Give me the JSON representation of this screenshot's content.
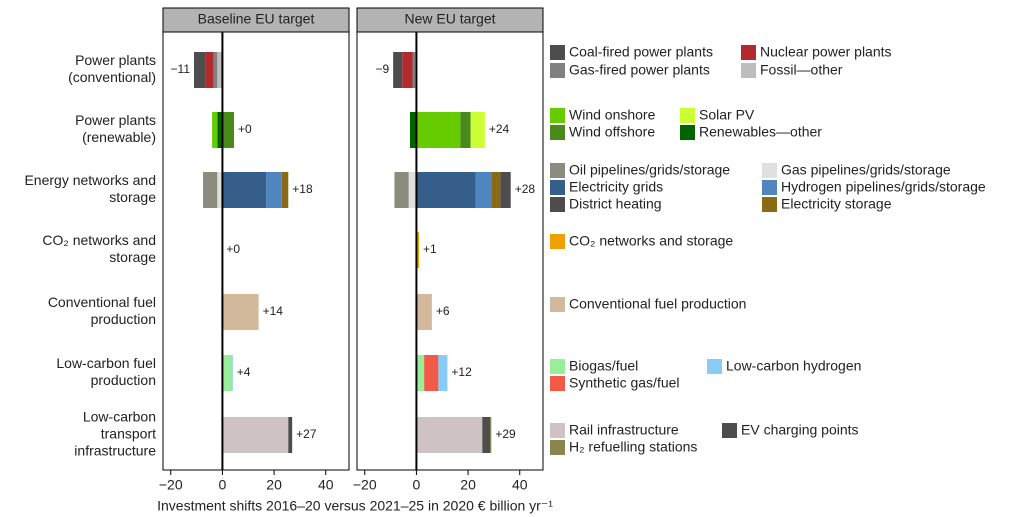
{
  "chart_data": {
    "type": "bar",
    "orientation": "horizontal",
    "xlabel": "Investment shifts 2016–20 versus 2021–25 in 2020 € billion yr⁻¹",
    "xlim": [
      -23,
      49
    ],
    "xticks": [
      {
        "value": -20,
        "label": "−20"
      },
      0,
      20,
      40
    ],
    "panels": [
      "Baseline EU target",
      "New EU target"
    ],
    "groups": [
      {
        "label": [
          "Power plants",
          "(conventional)"
        ],
        "value_labels": [
          "−11",
          "−9"
        ],
        "series": [
          {
            "name": "Coal-fired power plants",
            "color": "#4d4d4d",
            "values": [
              -4.5,
              -3.5
            ]
          },
          {
            "name": "Nuclear power plants",
            "color": "#b22a2e",
            "values": [
              -3,
              -4
            ]
          },
          {
            "name": "Gas-fired power plants",
            "color": "#808080",
            "values": [
              -1.5,
              -1
            ]
          },
          {
            "name": "Fossil—other",
            "color": "#bdbdbd",
            "values": [
              -2,
              -0.5
            ]
          }
        ]
      },
      {
        "label": [
          "Power plants",
          "(renewable)"
        ],
        "value_labels": [
          "+0",
          "+24"
        ],
        "series": [
          {
            "name": "Wind onshore",
            "color": "#66cc00",
            "values": [
              -2,
              17
            ]
          },
          {
            "name": "Wind offshore",
            "color": "#4a8a1a",
            "values": [
              4.5,
              4
            ]
          },
          {
            "name": "Solar PV",
            "color": "#ccff33",
            "values": [
              0,
              5.5
            ]
          },
          {
            "name": "Renewables—other",
            "color": "#006400",
            "values": [
              -2,
              -2.5
            ]
          }
        ]
      },
      {
        "label": [
          "Energy networks and",
          "storage"
        ],
        "value_labels": [
          "+18",
          "+28"
        ],
        "series": [
          {
            "name": "Oil pipelines/grids/storage",
            "color": "#8c8c7e",
            "values": [
              -5.5,
              -5.5
            ]
          },
          {
            "name": "Gas pipelines/grids/storage",
            "color": "#e0e0e0",
            "values": [
              -2,
              -3
            ]
          },
          {
            "name": "Electricity grids",
            "color": "#355f8a",
            "values": [
              17,
              23
            ]
          },
          {
            "name": "Hydrogen pipelines/grids/storage",
            "color": "#4f86c0",
            "values": [
              6,
              6
            ]
          },
          {
            "name": "Electricity storage",
            "color": "#8a6a14",
            "values": [
              2.5,
              3.5
            ]
          },
          {
            "name": "District heating",
            "color": "#4d4d4d",
            "values": [
              0,
              4
            ]
          }
        ]
      },
      {
        "label": [
          "CO₂ networks and",
          "storage"
        ],
        "value_labels": [
          "+0",
          "+1"
        ],
        "series": [
          {
            "name": "CO₂ networks and storage",
            "color": "#f0a000",
            "values": [
              0,
              1
            ]
          }
        ]
      },
      {
        "label": [
          "Conventional fuel",
          "production"
        ],
        "value_labels": [
          "+14",
          "+6"
        ],
        "series": [
          {
            "name": "Conventional fuel production",
            "color": "#d2b99c",
            "values": [
              14,
              6
            ]
          }
        ]
      },
      {
        "label": [
          "Low-carbon fuel",
          "production"
        ],
        "value_labels": [
          "+4",
          "+12"
        ],
        "series": [
          {
            "name": "Biogas/fuel",
            "color": "#99ee99",
            "values": [
              3.5,
              3
            ]
          },
          {
            "name": "Synthetic gas/fuel",
            "color": "#f05a47",
            "values": [
              0,
              5.5
            ]
          },
          {
            "name": "Low-carbon hydrogen",
            "color": "#88ccf5",
            "values": [
              0.5,
              3.5
            ]
          }
        ]
      },
      {
        "label": [
          "Low-carbon",
          "transport",
          "infrastructure"
        ],
        "value_labels": [
          "+27",
          "+29"
        ],
        "series": [
          {
            "name": "Rail infrastructure",
            "color": "#cfc2c5",
            "values": [
              25.5,
              25.5
            ]
          },
          {
            "name": "EV charging points",
            "color": "#4d4d4d",
            "values": [
              1.5,
              3
            ]
          },
          {
            "name": "H₂ refuelling stations",
            "color": "#8a8450",
            "values": [
              0,
              0.5
            ]
          }
        ]
      }
    ]
  }
}
